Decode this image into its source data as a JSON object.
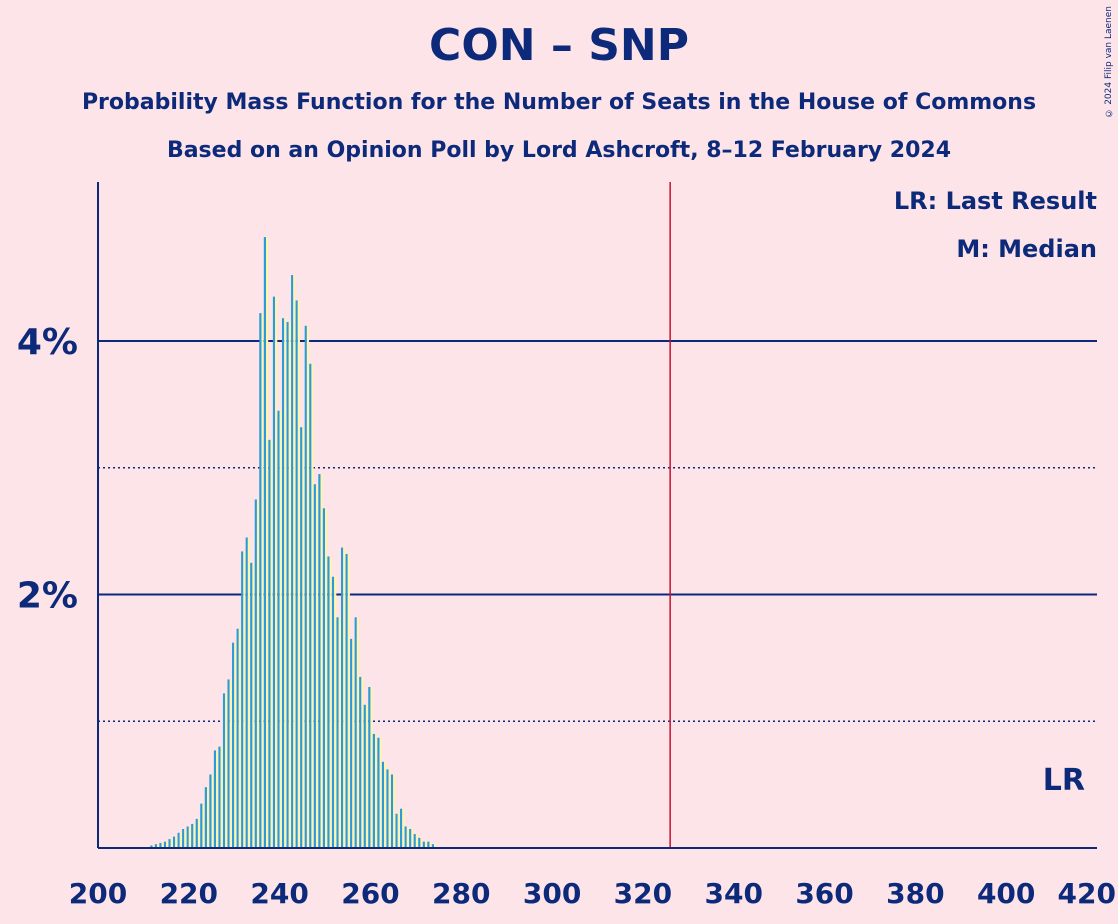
{
  "title": "CON – SNP",
  "subtitle1": "Probability Mass Function for the Number of Seats in the House of Commons",
  "subtitle2": "Based on an Opinion Poll by Lord Ashcroft, 8–12 February 2024",
  "copyright": "© 2024 Filip van Laenen",
  "legend": {
    "last_result": "LR: Last Result",
    "median": "M: Median"
  },
  "lr_label": "LR",
  "colors": {
    "background": "#fce4e8",
    "text": "#0d2a7a",
    "bar_blue": "#2a9ad8",
    "bar_yellow": "#fff3b0",
    "lr_line": "#c8102e"
  },
  "chart_data": {
    "type": "bar",
    "xlim": [
      200,
      420
    ],
    "ylim": [
      0,
      5.2
    ],
    "x_ticks": [
      "200",
      "220",
      "240",
      "260",
      "280",
      "300",
      "320",
      "340",
      "360",
      "380",
      "400",
      "420"
    ],
    "y_ticks": [
      {
        "value": 2,
        "label": "2%"
      },
      {
        "value": 4,
        "label": "4%"
      }
    ],
    "minor_gridlines": [
      1,
      3
    ],
    "last_result_seat": 326,
    "x": [
      212,
      213,
      214,
      215,
      216,
      217,
      218,
      219,
      220,
      221,
      222,
      223,
      224,
      225,
      226,
      227,
      228,
      229,
      230,
      231,
      232,
      233,
      234,
      235,
      236,
      237,
      238,
      239,
      240,
      241,
      242,
      243,
      244,
      245,
      246,
      247,
      248,
      249,
      250,
      251,
      252,
      253,
      254,
      255,
      256,
      257,
      258,
      259,
      260,
      261,
      262,
      263,
      264,
      265,
      266,
      267,
      268,
      269,
      270,
      271,
      272,
      273,
      274
    ],
    "series": [
      {
        "values": [
          0.02,
          0.03,
          0.04,
          0.05,
          0.07,
          0.09,
          0.12,
          0.15,
          0.17,
          0.19,
          0.23,
          0.35,
          0.48,
          0.58,
          0.77,
          0.8,
          1.22,
          1.33,
          1.62,
          1.73,
          2.34,
          2.45,
          2.25,
          2.75,
          4.22,
          4.82,
          3.22,
          4.35,
          3.45,
          4.18,
          4.15,
          4.52,
          4.32,
          3.32,
          4.12,
          3.82,
          2.87,
          2.95,
          2.68,
          2.3,
          2.14,
          1.82,
          2.37,
          2.32,
          1.65,
          1.82,
          1.35,
          1.13,
          1.27,
          0.9,
          0.87,
          0.68,
          0.62,
          0.58,
          0.27,
          0.31,
          0.17,
          0.15,
          0.11,
          0.08,
          0.05,
          0.05,
          0.03
        ]
      }
    ]
  }
}
